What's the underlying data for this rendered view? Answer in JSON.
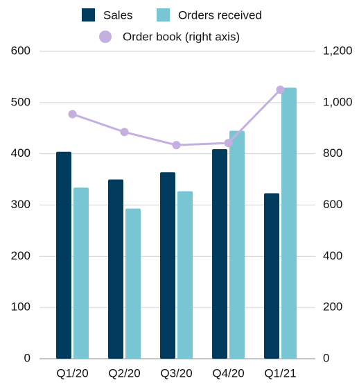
{
  "chart_data": {
    "type": "bar_line",
    "categories": [
      "Q1/20",
      "Q2/20",
      "Q3/20",
      "Q4/20",
      "Q1/21"
    ],
    "series": [
      {
        "name": "Sales",
        "color": "#003a5d",
        "type": "bar",
        "values": [
          404,
          350,
          364,
          409,
          323
        ]
      },
      {
        "name": "Orders received",
        "color": "#78c6d4",
        "type": "bar",
        "values": [
          334,
          293,
          327,
          445,
          529
        ]
      },
      {
        "name": "Order book (right axis)",
        "color": "#c3b0e0",
        "type": "line",
        "axis": "y2",
        "values": [
          955,
          885,
          834,
          842,
          1050
        ]
      }
    ],
    "ylim": [
      0,
      600
    ],
    "yticks": [
      0,
      100,
      200,
      300,
      400,
      500,
      600
    ],
    "y2lim": [
      0,
      1200
    ],
    "y2ticks": [
      0,
      200,
      400,
      600,
      800,
      {
        "value": 1000,
        "label": "1,000"
      },
      {
        "value": 1200,
        "label": "1,200"
      }
    ],
    "grid": true,
    "legend": "top"
  }
}
